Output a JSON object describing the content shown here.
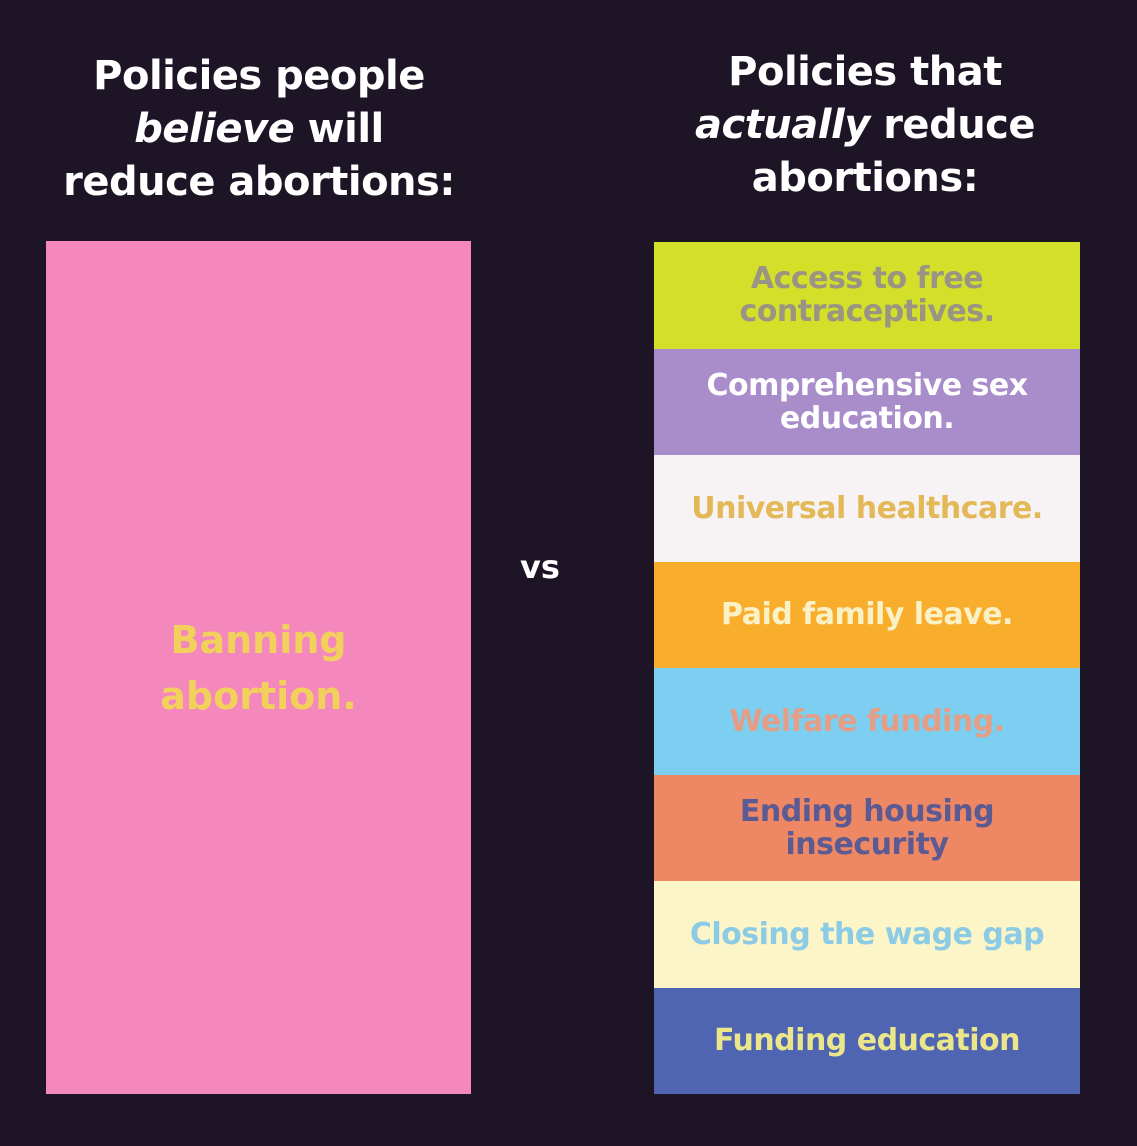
{
  "left_heading": {
    "line1": "Policies people",
    "emphasis": "believe",
    "rest": " will",
    "line3": "reduce abortions:"
  },
  "right_heading": {
    "line1": "Policies that",
    "emphasis": "actually",
    "rest": " reduce",
    "line3": "abortions:"
  },
  "left_box": {
    "label": "Banning abortion.",
    "bg": "#f488bc",
    "color": "#f1d15b"
  },
  "vs": "vs",
  "bands": [
    {
      "label": "Access to free contraceptives.",
      "bg": "#d4df2a",
      "color": "#9a9484"
    },
    {
      "label": "Comprehensive sex education.",
      "bg": "#a98cca",
      "color": "#ffffff"
    },
    {
      "label": "Universal healthcare.",
      "bg": "#f7f3f5",
      "color": "#e3b856"
    },
    {
      "label": "Paid family leave.",
      "bg": "#f8ae2c",
      "color": "#fbf1c6"
    },
    {
      "label": "Welfare funding.",
      "bg": "#7ccff1",
      "color": "#e59e86"
    },
    {
      "label": "Ending housing insecurity",
      "bg": "#ee8764",
      "color": "#5b5a93"
    },
    {
      "label": "Closing the wage gap",
      "bg": "#fbf5c8",
      "color": "#8ccbe6"
    },
    {
      "label": "Funding education",
      "bg": "#4f65b1",
      "color": "#ece68a"
    }
  ]
}
